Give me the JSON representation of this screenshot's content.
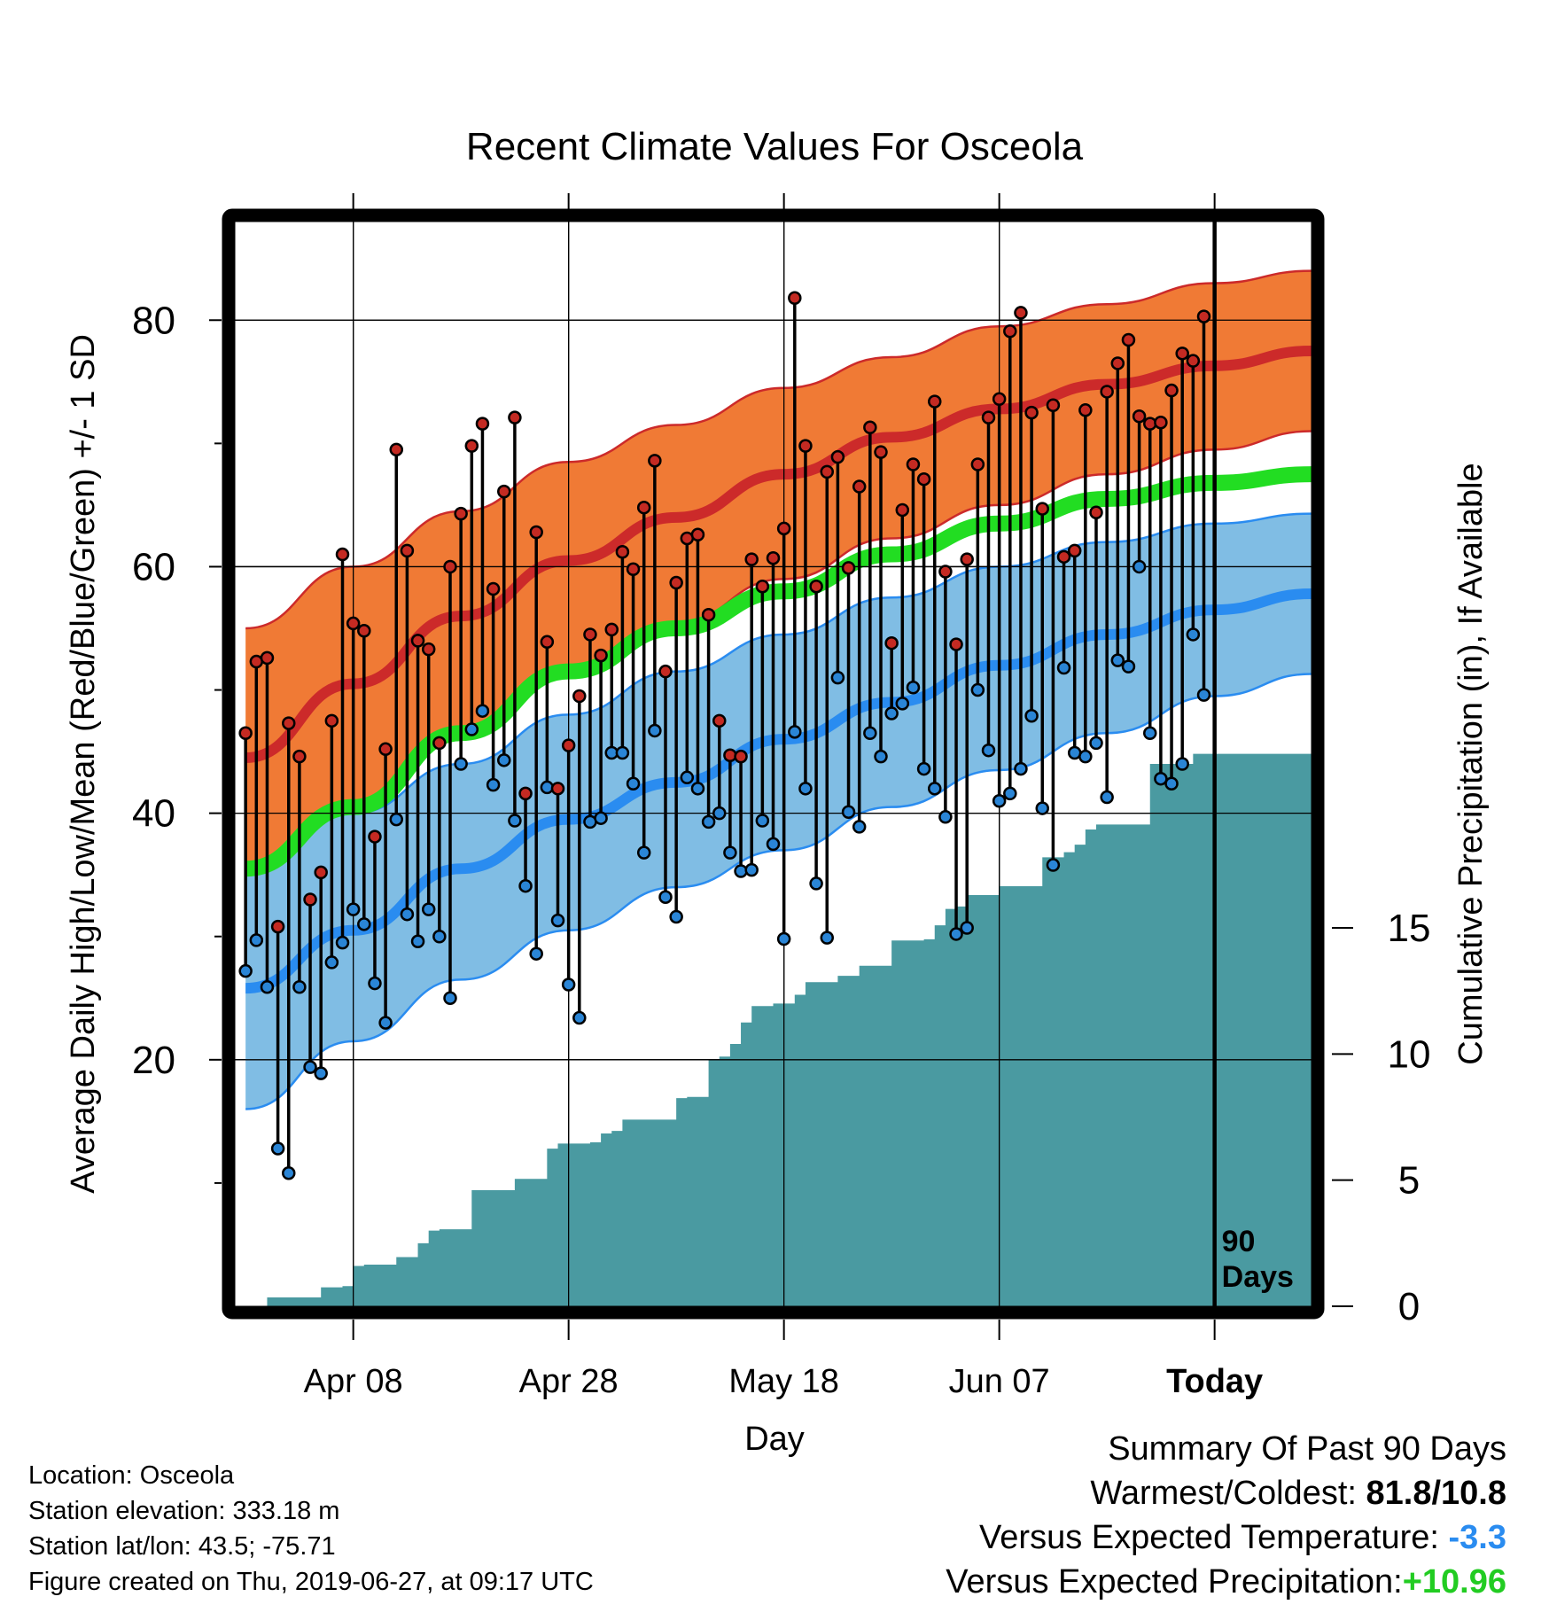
{
  "chart_data": {
    "type": "line",
    "title": "Recent Climate Values For Osceola",
    "xlabel": "Day",
    "ylabel": "Average Daily High/Low/Mean (Red/Blue/Green) +/- 1 SD",
    "y2label": "Cumulative Precipitation (in), If Available",
    "x_ticks": [
      "Apr 08",
      "Apr 28",
      "May 18",
      "Jun 07",
      "Today"
    ],
    "x_tick_days": [
      10,
      30,
      50,
      70,
      90
    ],
    "xlim": [
      -1,
      99
    ],
    "ylim": [
      0,
      88
    ],
    "y_ticks": [
      20,
      40,
      60,
      80
    ],
    "y2lim": [
      0,
      43
    ],
    "y2_ticks": [
      0,
      5,
      10,
      15
    ],
    "today_label": "90 Days",
    "grid": true,
    "colors": {
      "high_band": "#f07a35",
      "high_mean": "#cc2a2a",
      "low_band": "#80bde4",
      "low_mean": "#2a8cf0",
      "avg_mean": "#22dd22",
      "precip": "#4a9aa1",
      "high_dot": "#c42a22",
      "low_dot": "#2a85d6"
    },
    "normals": {
      "days": [
        0,
        10,
        20,
        30,
        40,
        50,
        60,
        70,
        80,
        90,
        99
      ],
      "high_mean": [
        44.5,
        50.5,
        56.0,
        60.5,
        64.0,
        67.5,
        70.5,
        72.8,
        74.8,
        76.3,
        77.5
      ],
      "high_upper": [
        55.0,
        60.0,
        64.5,
        68.5,
        71.5,
        74.5,
        77.0,
        79.5,
        81.3,
        83.0,
        84.0
      ],
      "high_lower": [
        34.5,
        40.5,
        46.0,
        51.0,
        55.5,
        59.0,
        62.3,
        65.0,
        67.5,
        69.5,
        71.0
      ],
      "avg_mean": [
        35.5,
        40.5,
        46.5,
        51.5,
        55.0,
        58.0,
        61.0,
        63.5,
        65.5,
        66.8,
        67.5
      ],
      "low_mean": [
        25.8,
        30.5,
        35.5,
        39.5,
        42.5,
        46.0,
        49.0,
        52.0,
        54.5,
        56.5,
        57.8
      ],
      "low_upper": [
        35.5,
        40.0,
        44.0,
        48.0,
        51.5,
        54.5,
        57.5,
        60.0,
        62.0,
        63.5,
        64.3
      ],
      "low_lower": [
        16.0,
        21.5,
        26.5,
        30.5,
        34.0,
        37.0,
        40.5,
        43.5,
        46.5,
        49.5,
        51.3
      ]
    },
    "series": [
      {
        "name": "Daily High",
        "values": [
          46.5,
          52.3,
          52.6,
          30.8,
          47.3,
          44.6,
          33.0,
          35.2,
          47.5,
          61.0,
          55.4,
          54.8,
          38.1,
          45.2,
          69.5,
          61.3,
          54.0,
          53.3,
          45.7,
          60.0,
          64.3,
          69.8,
          71.6,
          58.2,
          66.1,
          72.1,
          41.6,
          62.8,
          53.9,
          42.0,
          45.5,
          49.5,
          54.5,
          52.8,
          54.9,
          61.2,
          59.8,
          64.8,
          68.6,
          51.5,
          58.7,
          62.3,
          62.6,
          56.1,
          47.5,
          44.7,
          44.6,
          60.6,
          58.4,
          60.7,
          63.1,
          81.8,
          69.8,
          58.4,
          67.7,
          68.9,
          59.9,
          66.5,
          71.3,
          69.3,
          53.8,
          64.6,
          68.3,
          67.1,
          73.4,
          59.6,
          53.7,
          60.6,
          68.3,
          72.1,
          73.6,
          79.1,
          80.6,
          72.5,
          64.7,
          73.1,
          60.8,
          61.3,
          72.7,
          64.4,
          74.2,
          76.5,
          78.4,
          72.2,
          71.6,
          71.7,
          74.3,
          77.3,
          76.7,
          80.3
        ],
        "dot_color": "#c42a22"
      },
      {
        "name": "Daily Low",
        "values": [
          27.2,
          29.7,
          25.9,
          12.8,
          10.8,
          25.9,
          19.4,
          18.9,
          27.9,
          29.5,
          32.2,
          31.0,
          26.2,
          23.0,
          39.5,
          31.8,
          29.6,
          32.2,
          30.0,
          25.0,
          44.0,
          46.8,
          48.3,
          42.3,
          44.3,
          39.4,
          34.1,
          28.6,
          42.1,
          31.3,
          26.1,
          23.4,
          39.3,
          39.6,
          44.9,
          44.9,
          42.4,
          36.8,
          46.7,
          33.2,
          31.6,
          42.9,
          42.0,
          39.3,
          40.0,
          36.8,
          35.3,
          35.4,
          39.4,
          37.5,
          29.8,
          46.6,
          42.0,
          34.3,
          29.9,
          51.0,
          40.1,
          38.9,
          46.5,
          44.6,
          48.1,
          48.9,
          50.2,
          43.6,
          42.0,
          39.7,
          30.2,
          30.7,
          50.0,
          45.1,
          41.0,
          41.6,
          43.6,
          47.9,
          40.4,
          35.8,
          51.8,
          44.9,
          44.6,
          45.7,
          41.3,
          52.4,
          51.9,
          60.0,
          46.5,
          42.8,
          42.4,
          44.0,
          54.5,
          49.6
        ],
        "dot_color": "#2a85d6"
      },
      {
        "name": "Cumulative Precipitation",
        "axis": "y2",
        "days": [
          0,
          1,
          2,
          3,
          4,
          5,
          6,
          7,
          8,
          9,
          10,
          11,
          12,
          13,
          14,
          15,
          16,
          17,
          18,
          19,
          20,
          21,
          22,
          23,
          24,
          25,
          26,
          27,
          28,
          29,
          30,
          31,
          32,
          33,
          34,
          35,
          36,
          37,
          38,
          39,
          40,
          41,
          42,
          43,
          44,
          45,
          46,
          47,
          48,
          49,
          50,
          51,
          52,
          53,
          54,
          55,
          56,
          57,
          58,
          59,
          60,
          61,
          62,
          63,
          64,
          65,
          66,
          67,
          68,
          69,
          70,
          71,
          72,
          73,
          74,
          75,
          76,
          77,
          78,
          79,
          80,
          81,
          82,
          83,
          84,
          85,
          86,
          87,
          88,
          89,
          90,
          99
        ],
        "values": [
          0.0,
          0.0,
          0.35,
          0.35,
          0.35,
          0.35,
          0.35,
          0.75,
          0.75,
          0.8,
          1.6,
          1.65,
          1.65,
          1.65,
          1.95,
          1.95,
          2.5,
          3.0,
          3.05,
          3.05,
          3.05,
          4.6,
          4.6,
          4.6,
          4.6,
          5.05,
          5.05,
          5.05,
          6.25,
          6.45,
          6.45,
          6.45,
          6.5,
          6.85,
          6.95,
          7.4,
          7.4,
          7.4,
          7.4,
          7.4,
          8.25,
          8.3,
          8.3,
          9.75,
          9.9,
          10.4,
          11.25,
          11.9,
          11.9,
          12.0,
          12.0,
          12.35,
          12.85,
          12.85,
          12.85,
          13.1,
          13.1,
          13.5,
          13.5,
          13.5,
          14.5,
          14.5,
          14.5,
          14.55,
          15.1,
          15.75,
          15.85,
          16.3,
          16.3,
          16.3,
          16.65,
          16.65,
          16.65,
          16.65,
          17.8,
          17.8,
          18.0,
          18.3,
          18.9,
          19.1,
          19.1,
          19.1,
          19.1,
          19.1,
          21.5,
          21.5,
          21.5,
          21.5,
          21.9,
          21.9,
          21.9,
          21.9
        ]
      }
    ]
  },
  "info": {
    "location": "Location: Osceola",
    "elevation": "Station elevation: 333.18 m",
    "latlon": "Station lat/lon: 43.5; -75.71",
    "created": "Figure created on Thu, 2019-06-27, at 09:17 UTC"
  },
  "summary": {
    "heading": "Summary Of Past 90 Days",
    "warm_cold_label": "Warmest/Coldest:",
    "warm_cold_value": "81.8/10.8",
    "temp_label": "Versus Expected Temperature:",
    "temp_value": "-3.3",
    "temp_color": "#2a8cf0",
    "precip_label": "Versus Expected Precipitation:",
    "precip_value": "+10.96",
    "precip_color": "#22cc22"
  }
}
